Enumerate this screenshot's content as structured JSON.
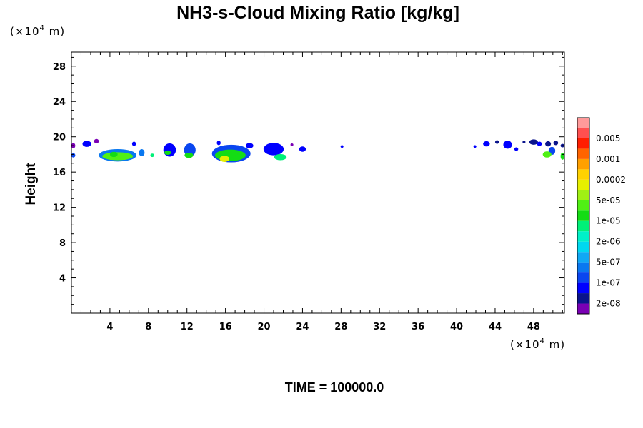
{
  "chart_data": {
    "type": "heatmap",
    "title": "NH3-s-Cloud Mixing Ratio [kg/kg]",
    "xlabel": "",
    "ylabel": "Height",
    "x_unit": {
      "prefix": "(×10",
      "exponent": "4",
      "suffix": " m)"
    },
    "y_unit": {
      "prefix": "(×10",
      "exponent": "4",
      "suffix": " m)"
    },
    "xlim": [
      0,
      51.2
    ],
    "ylim": [
      0,
      29.6
    ],
    "x_ticks": [
      "4",
      "8",
      "12",
      "16",
      "20",
      "24",
      "28",
      "32",
      "36",
      "40",
      "44",
      "48"
    ],
    "x_tick_values": [
      4,
      8,
      12,
      16,
      20,
      24,
      28,
      32,
      36,
      40,
      44,
      48
    ],
    "y_ticks": [
      "4",
      "8",
      "12",
      "16",
      "20",
      "24",
      "28"
    ],
    "y_tick_values": [
      4,
      8,
      12,
      16,
      20,
      24,
      28
    ],
    "colorbar": {
      "colors": [
        "#7a00b4",
        "#0a148c",
        "#0000ff",
        "#0a46f0",
        "#0a78f0",
        "#10a8f4",
        "#00d8f0",
        "#00f0c8",
        "#00f078",
        "#14dc14",
        "#50f014",
        "#a0f014",
        "#e6f000",
        "#ffd200",
        "#ffa000",
        "#ff6400",
        "#ff1e00",
        "#ff5050",
        "#ff9a9a"
      ],
      "labels": [
        "2e-08",
        "1e-07",
        "5e-07",
        "2e-06",
        "1e-05",
        "5e-05",
        "0.0002",
        "0.001",
        "0.005"
      ]
    },
    "cloud_cells": [
      {
        "x": 0.2,
        "y": 19.0,
        "w": 0.4,
        "h": 0.6,
        "level": 0
      },
      {
        "x": 0.2,
        "y": 17.9,
        "w": 0.4,
        "h": 0.5,
        "level": 3
      },
      {
        "x": 1.6,
        "y": 19.2,
        "w": 0.9,
        "h": 0.7,
        "level": 2
      },
      {
        "x": 2.6,
        "y": 19.5,
        "w": 0.5,
        "h": 0.5,
        "level": 0
      },
      {
        "x": 4.8,
        "y": 17.9,
        "w": 3.9,
        "h": 1.4,
        "level": 4
      },
      {
        "x": 4.8,
        "y": 17.8,
        "w": 3.2,
        "h": 0.9,
        "level": 10
      },
      {
        "x": 4.4,
        "y": 18.0,
        "w": 0.8,
        "h": 0.6,
        "level": 9
      },
      {
        "x": 6.5,
        "y": 19.2,
        "w": 0.4,
        "h": 0.5,
        "level": 2
      },
      {
        "x": 7.3,
        "y": 18.2,
        "w": 0.6,
        "h": 0.8,
        "level": 4
      },
      {
        "x": 8.4,
        "y": 17.9,
        "w": 0.4,
        "h": 0.4,
        "level": 8
      },
      {
        "x": 10.2,
        "y": 18.5,
        "w": 1.3,
        "h": 1.5,
        "level": 2
      },
      {
        "x": 10.0,
        "y": 18.2,
        "w": 0.7,
        "h": 0.5,
        "level": 9
      },
      {
        "x": 12.3,
        "y": 18.5,
        "w": 1.2,
        "h": 1.5,
        "level": 3
      },
      {
        "x": 12.2,
        "y": 17.9,
        "w": 0.9,
        "h": 0.6,
        "level": 9
      },
      {
        "x": 15.3,
        "y": 19.3,
        "w": 0.4,
        "h": 0.5,
        "level": 2
      },
      {
        "x": 16.6,
        "y": 18.1,
        "w": 4.0,
        "h": 2.0,
        "level": 3
      },
      {
        "x": 16.5,
        "y": 17.9,
        "w": 3.2,
        "h": 1.3,
        "level": 9
      },
      {
        "x": 15.9,
        "y": 17.5,
        "w": 1.0,
        "h": 0.7,
        "level": 12
      },
      {
        "x": 18.5,
        "y": 19.0,
        "w": 0.8,
        "h": 0.6,
        "level": 2
      },
      {
        "x": 21.0,
        "y": 18.6,
        "w": 2.1,
        "h": 1.4,
        "level": 2
      },
      {
        "x": 21.7,
        "y": 17.7,
        "w": 1.3,
        "h": 0.7,
        "level": 8
      },
      {
        "x": 22.9,
        "y": 19.1,
        "w": 0.3,
        "h": 0.3,
        "level": 0
      },
      {
        "x": 24.0,
        "y": 18.6,
        "w": 0.7,
        "h": 0.6,
        "level": 2
      },
      {
        "x": 28.1,
        "y": 18.9,
        "w": 0.3,
        "h": 0.3,
        "level": 2
      },
      {
        "x": 41.9,
        "y": 18.9,
        "w": 0.3,
        "h": 0.3,
        "level": 2
      },
      {
        "x": 43.1,
        "y": 19.2,
        "w": 0.7,
        "h": 0.6,
        "level": 2
      },
      {
        "x": 44.2,
        "y": 19.4,
        "w": 0.4,
        "h": 0.4,
        "level": 1
      },
      {
        "x": 45.3,
        "y": 19.1,
        "w": 0.9,
        "h": 0.9,
        "level": 2
      },
      {
        "x": 46.2,
        "y": 18.6,
        "w": 0.4,
        "h": 0.4,
        "level": 2
      },
      {
        "x": 47.0,
        "y": 19.4,
        "w": 0.3,
        "h": 0.3,
        "level": 1
      },
      {
        "x": 48.0,
        "y": 19.4,
        "w": 0.9,
        "h": 0.6,
        "level": 1
      },
      {
        "x": 48.6,
        "y": 19.2,
        "w": 0.5,
        "h": 0.5,
        "level": 2
      },
      {
        "x": 49.5,
        "y": 19.2,
        "w": 0.6,
        "h": 0.6,
        "level": 1
      },
      {
        "x": 50.3,
        "y": 19.3,
        "w": 0.5,
        "h": 0.5,
        "level": 1
      },
      {
        "x": 49.9,
        "y": 18.4,
        "w": 0.7,
        "h": 0.9,
        "level": 3
      },
      {
        "x": 49.4,
        "y": 18.0,
        "w": 0.9,
        "h": 0.7,
        "level": 10
      },
      {
        "x": 51.0,
        "y": 19.0,
        "w": 0.4,
        "h": 0.4,
        "level": 1
      },
      {
        "x": 51.0,
        "y": 17.8,
        "w": 0.4,
        "h": 0.8,
        "level": 9
      }
    ]
  },
  "footer": {
    "time_label": "TIME = 100000.0"
  }
}
